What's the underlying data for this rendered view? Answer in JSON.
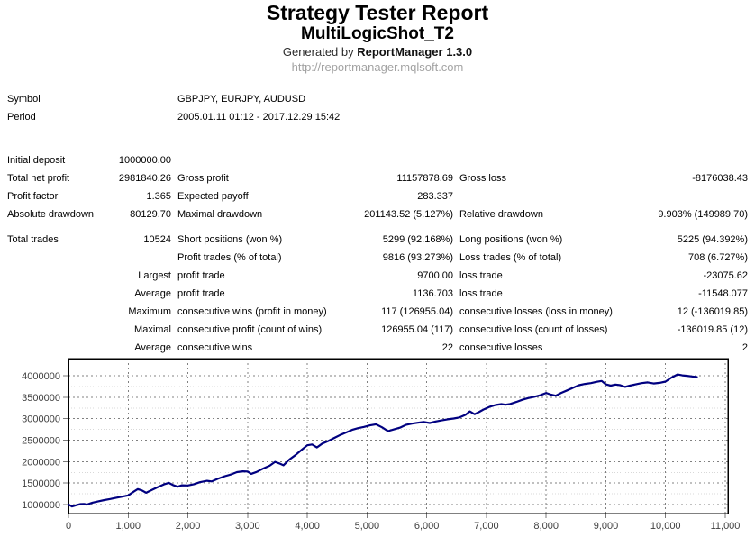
{
  "header": {
    "title": "Strategy Tester Report",
    "subtitle": "MultiLogicShot_T2",
    "generated_prefix": "Generated by ",
    "generator": "ReportManager 1.3.0",
    "url": "http://reportmanager.mqlsoft.com"
  },
  "info": {
    "rows": [
      {
        "label": "Symbol",
        "value": "GBPJPY, EURJPY, AUDUSD"
      },
      {
        "label": "Period",
        "value": "2005.01.11 01:12 - 2017.12.29 15:42"
      }
    ]
  },
  "stats": {
    "group1": [
      {
        "c1": "Initial deposit",
        "c2": "1000000.00",
        "c3": "",
        "c4": "",
        "c5": "",
        "c6": ""
      },
      {
        "c1": "Total net profit",
        "c2": "2981840.26",
        "c3": "Gross profit",
        "c4": "11157878.69",
        "c5": "Gross loss",
        "c6": "-8176038.43"
      },
      {
        "c1": "Profit factor",
        "c2": "1.365",
        "c3": "Expected payoff",
        "c4": "283.337",
        "c5": "",
        "c6": ""
      },
      {
        "c1": "Absolute drawdown",
        "c2": "80129.70",
        "c3": "Maximal drawdown",
        "c4": "201143.52 (5.127%)",
        "c5": "Relative drawdown",
        "c6": "9.903% (149989.70)"
      }
    ],
    "group2": [
      {
        "c1": "Total trades",
        "c2": "10524",
        "c3": "Short positions (won %)",
        "c4": "5299 (92.168%)",
        "c5": "Long positions (won %)",
        "c6": "5225 (94.392%)"
      },
      {
        "c1": "",
        "c2": "",
        "c3": "Profit trades (% of total)",
        "c4": "9816 (93.273%)",
        "c5": "Loss trades (% of total)",
        "c6": "708 (6.727%)"
      },
      {
        "c1": "",
        "c2": "Largest",
        "c3": "profit trade",
        "c4": "9700.00",
        "c5": "loss trade",
        "c6": "-23075.62"
      },
      {
        "c1": "",
        "c2": "Average",
        "c3": "profit trade",
        "c4": "1136.703",
        "c5": "loss trade",
        "c6": "-11548.077"
      },
      {
        "c1": "",
        "c2": "Maximum",
        "c3": "consecutive wins (profit in money)",
        "c4": "117 (126955.04)",
        "c5": "consecutive losses (loss in money)",
        "c6": "12 (-136019.85)"
      },
      {
        "c1": "",
        "c2": "Maximal",
        "c3": "consecutive profit (count of wins)",
        "c4": "126955.04 (117)",
        "c5": "consecutive loss (count of losses)",
        "c6": "-136019.85 (12)"
      },
      {
        "c1": "",
        "c2": "Average",
        "c3": "consecutive wins",
        "c4": "22",
        "c5": "consecutive losses",
        "c6": "2"
      }
    ]
  },
  "chart_data": {
    "type": "line",
    "title": "",
    "xlabel": "",
    "ylabel": "",
    "legend": false,
    "grid": true,
    "xlim": [
      0,
      11045
    ],
    "ylim": [
      790000,
      4400000
    ],
    "colors": {
      "line": "#000080",
      "grid_major": "#808080",
      "grid_minor": "#d8d8d8",
      "axis": "#000000",
      "tick": "#7a7a7a",
      "plot_bg": "#ffffff"
    },
    "xticks": [
      {
        "v": 0,
        "label": "0"
      },
      {
        "v": 1000,
        "label": "1,000"
      },
      {
        "v": 2000,
        "label": "2,000"
      },
      {
        "v": 3000,
        "label": "3,000"
      },
      {
        "v": 4000,
        "label": "4,000"
      },
      {
        "v": 5000,
        "label": "5,000"
      },
      {
        "v": 6000,
        "label": "6,000"
      },
      {
        "v": 7000,
        "label": "7,000"
      },
      {
        "v": 8000,
        "label": "8,000"
      },
      {
        "v": 9000,
        "label": "9,000"
      },
      {
        "v": 10000,
        "label": "10,000"
      },
      {
        "v": 11000,
        "label": "11,000"
      }
    ],
    "yticks": [
      {
        "v": 1000000,
        "label": "1000000"
      },
      {
        "v": 1500000,
        "label": "1500000"
      },
      {
        "v": 2000000,
        "label": "2000000"
      },
      {
        "v": 2500000,
        "label": "2500000"
      },
      {
        "v": 3000000,
        "label": "3000000"
      },
      {
        "v": 3500000,
        "label": "3500000"
      },
      {
        "v": 4000000,
        "label": "4000000"
      }
    ],
    "y_minor": [
      1250000,
      1750000,
      2250000,
      2750000,
      3250000,
      3750000
    ],
    "series": [
      {
        "name": "Balance",
        "color": "#000080",
        "x": [
          0,
          60,
          130,
          200,
          260,
          310,
          400,
          500,
          600,
          700,
          800,
          900,
          1000,
          1080,
          1160,
          1230,
          1300,
          1400,
          1500,
          1600,
          1680,
          1760,
          1830,
          1900,
          2000,
          2100,
          2200,
          2320,
          2400,
          2500,
          2620,
          2720,
          2820,
          2920,
          3000,
          3060,
          3150,
          3250,
          3370,
          3460,
          3530,
          3600,
          3700,
          3800,
          3910,
          4000,
          4080,
          4160,
          4250,
          4350,
          4450,
          4550,
          4650,
          4750,
          4850,
          4950,
          5050,
          5150,
          5250,
          5350,
          5450,
          5550,
          5650,
          5750,
          5850,
          5950,
          6050,
          6150,
          6250,
          6350,
          6450,
          6550,
          6650,
          6720,
          6800,
          6880,
          6960,
          7050,
          7150,
          7250,
          7320,
          7400,
          7500,
          7600,
          7700,
          7800,
          7900,
          8000,
          8080,
          8160,
          8250,
          8350,
          8450,
          8550,
          8650,
          8750,
          8850,
          8930,
          9000,
          9080,
          9160,
          9240,
          9320,
          9400,
          9500,
          9600,
          9700,
          9800,
          9900,
          10000,
          10100,
          10200,
          10280,
          10360,
          10440,
          10524
        ],
        "y": [
          1000000,
          955000,
          985000,
          1010000,
          1015000,
          1000000,
          1045000,
          1075000,
          1105000,
          1130000,
          1160000,
          1185000,
          1215000,
          1290000,
          1360000,
          1330000,
          1275000,
          1345000,
          1410000,
          1470000,
          1505000,
          1450000,
          1415000,
          1450000,
          1445000,
          1475000,
          1520000,
          1555000,
          1540000,
          1600000,
          1660000,
          1700000,
          1755000,
          1775000,
          1770000,
          1715000,
          1760000,
          1830000,
          1905000,
          1995000,
          1960000,
          1915000,
          2050000,
          2150000,
          2280000,
          2380000,
          2400000,
          2330000,
          2420000,
          2480000,
          2550000,
          2620000,
          2680000,
          2740000,
          2780000,
          2810000,
          2845000,
          2870000,
          2800000,
          2710000,
          2750000,
          2790000,
          2855000,
          2885000,
          2905000,
          2925000,
          2900000,
          2935000,
          2960000,
          2985000,
          3005000,
          3030000,
          3090000,
          3170000,
          3105000,
          3160000,
          3220000,
          3275000,
          3320000,
          3340000,
          3325000,
          3345000,
          3390000,
          3440000,
          3480000,
          3510000,
          3545000,
          3600000,
          3560000,
          3535000,
          3600000,
          3660000,
          3720000,
          3780000,
          3810000,
          3830000,
          3860000,
          3880000,
          3800000,
          3770000,
          3795000,
          3780000,
          3740000,
          3770000,
          3800000,
          3830000,
          3845000,
          3820000,
          3835000,
          3865000,
          3960000,
          4030000,
          4010000,
          4000000,
          3985000,
          3970000
        ]
      }
    ]
  }
}
